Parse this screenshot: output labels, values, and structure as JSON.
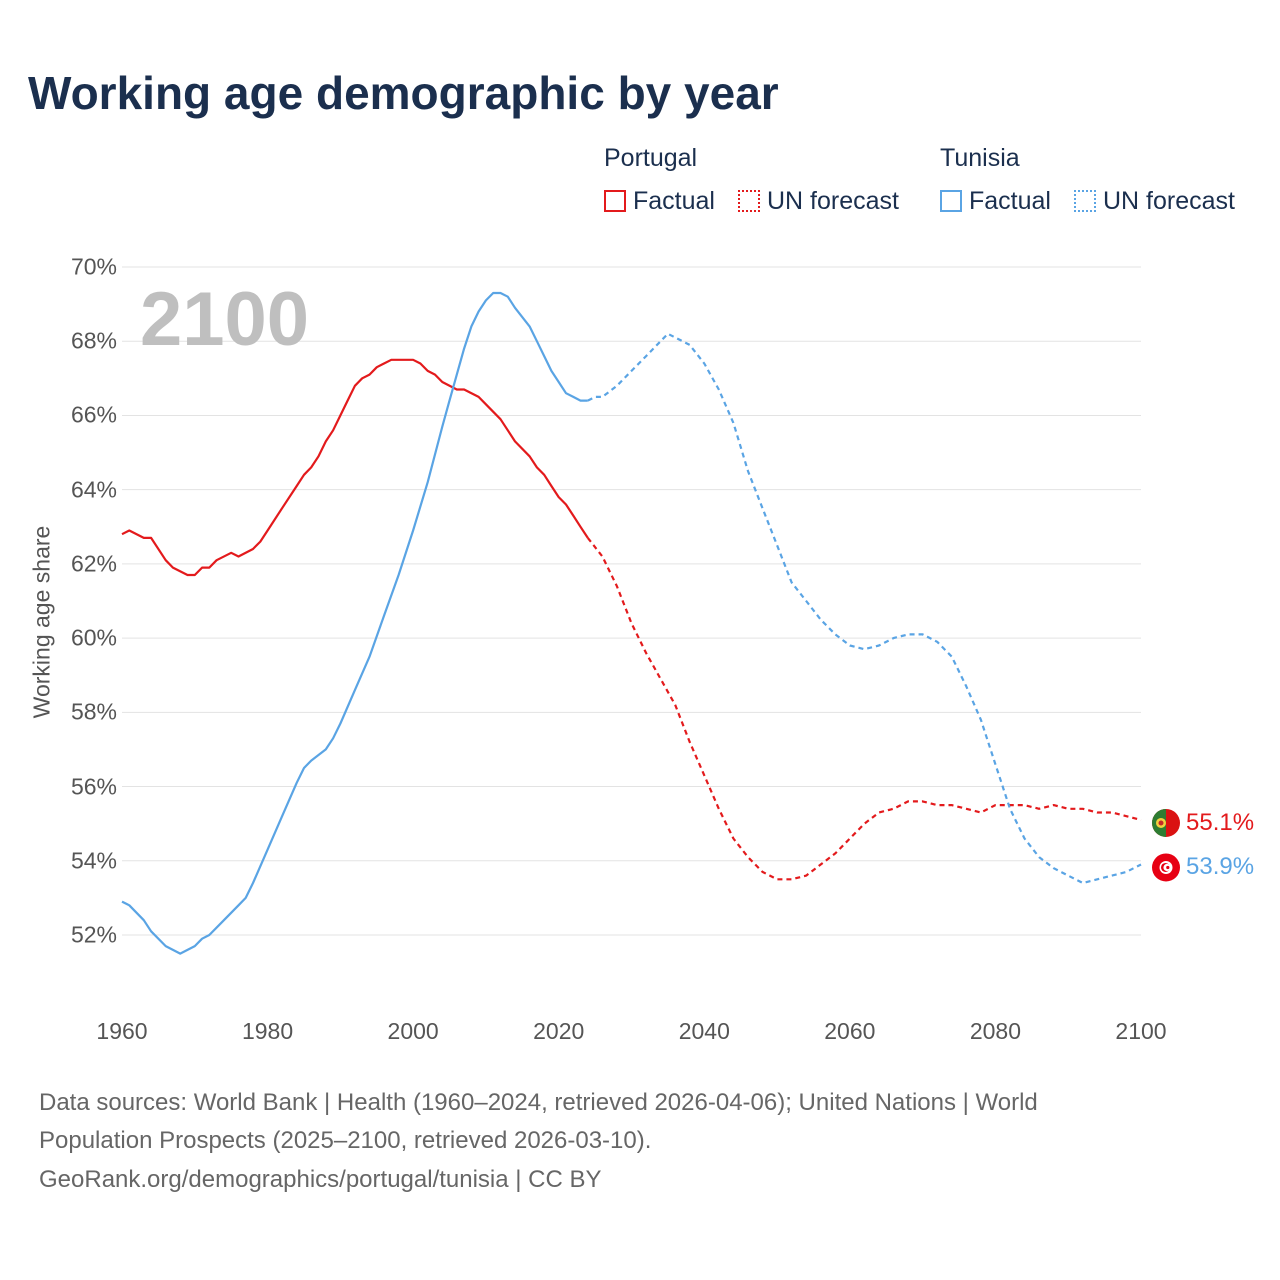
{
  "title": "Working age demographic by year",
  "year_label": "2100",
  "legend": {
    "groups": [
      {
        "name": "Portugal",
        "factual_label": "Factual",
        "forecast_label": "UN forecast",
        "color": "#e31a1c"
      },
      {
        "name": "Tunisia",
        "factual_label": "Factual",
        "forecast_label": "UN forecast",
        "color": "#5aa4e4"
      }
    ]
  },
  "end_labels": {
    "portugal": "55.1%",
    "tunisia": "53.9%"
  },
  "footer": {
    "line1": "Data sources: World Bank | Health (1960–2024, retrieved 2026-04-06); United Nations | World",
    "line2": "Population Prospects (2025–2100, retrieved 2026-03-10).",
    "line3": "GeoRank.org/demographics/portugal/tunisia | CC BY"
  },
  "chart_data": {
    "type": "line",
    "title": "Working age demographic by year",
    "xlabel": "",
    "ylabel": "Working age share",
    "xlim": [
      1960,
      2100
    ],
    "ylim": [
      50.5,
      70.5
    ],
    "xticks": [
      1960,
      1980,
      2000,
      2020,
      2040,
      2060,
      2080,
      2100
    ],
    "xtick_labels": [
      "1960",
      "1980",
      "2000",
      "2020",
      "2040",
      "2060",
      "2080",
      "2100"
    ],
    "yticks": [
      52,
      54,
      56,
      58,
      60,
      62,
      64,
      66,
      68,
      70
    ],
    "ytick_labels": [
      "52%",
      "54%",
      "56%",
      "58%",
      "60%",
      "62%",
      "64%",
      "66%",
      "68%",
      "70%"
    ],
    "grid": true,
    "factual_end_year": 2024,
    "series": [
      {
        "name": "Portugal",
        "color": "#e31a1c",
        "points": [
          [
            1960,
            62.8
          ],
          [
            1961,
            62.9
          ],
          [
            1963,
            62.7
          ],
          [
            1964,
            62.7
          ],
          [
            1966,
            62.1
          ],
          [
            1967,
            61.9
          ],
          [
            1969,
            61.7
          ],
          [
            1970,
            61.7
          ],
          [
            1971,
            61.9
          ],
          [
            1972,
            61.9
          ],
          [
            1973,
            62.1
          ],
          [
            1975,
            62.3
          ],
          [
            1976,
            62.2
          ],
          [
            1978,
            62.4
          ],
          [
            1979,
            62.6
          ],
          [
            1980,
            62.9
          ],
          [
            1982,
            63.5
          ],
          [
            1984,
            64.1
          ],
          [
            1985,
            64.4
          ],
          [
            1986,
            64.6
          ],
          [
            1987,
            64.9
          ],
          [
            1988,
            65.3
          ],
          [
            1989,
            65.6
          ],
          [
            1990,
            66.0
          ],
          [
            1991,
            66.4
          ],
          [
            1992,
            66.8
          ],
          [
            1993,
            67.0
          ],
          [
            1994,
            67.1
          ],
          [
            1995,
            67.3
          ],
          [
            1996,
            67.4
          ],
          [
            1997,
            67.5
          ],
          [
            2000,
            67.5
          ],
          [
            2001,
            67.4
          ],
          [
            2002,
            67.2
          ],
          [
            2003,
            67.1
          ],
          [
            2004,
            66.9
          ],
          [
            2006,
            66.7
          ],
          [
            2007,
            66.7
          ],
          [
            2009,
            66.5
          ],
          [
            2010,
            66.3
          ],
          [
            2012,
            65.9
          ],
          [
            2013,
            65.6
          ],
          [
            2014,
            65.3
          ],
          [
            2016,
            64.9
          ],
          [
            2017,
            64.6
          ],
          [
            2018,
            64.4
          ],
          [
            2019,
            64.1
          ],
          [
            2020,
            63.8
          ],
          [
            2021,
            63.6
          ],
          [
            2022,
            63.3
          ],
          [
            2023,
            63.0
          ],
          [
            2024,
            62.7
          ],
          [
            2026,
            62.2
          ],
          [
            2028,
            61.4
          ],
          [
            2030,
            60.4
          ],
          [
            2032,
            59.6
          ],
          [
            2034,
            58.9
          ],
          [
            2036,
            58.2
          ],
          [
            2038,
            57.2
          ],
          [
            2040,
            56.3
          ],
          [
            2042,
            55.4
          ],
          [
            2044,
            54.6
          ],
          [
            2046,
            54.1
          ],
          [
            2048,
            53.7
          ],
          [
            2050,
            53.5
          ],
          [
            2052,
            53.5
          ],
          [
            2054,
            53.6
          ],
          [
            2056,
            53.9
          ],
          [
            2058,
            54.2
          ],
          [
            2060,
            54.6
          ],
          [
            2062,
            55.0
          ],
          [
            2064,
            55.3
          ],
          [
            2066,
            55.4
          ],
          [
            2068,
            55.6
          ],
          [
            2070,
            55.6
          ],
          [
            2072,
            55.5
          ],
          [
            2074,
            55.5
          ],
          [
            2076,
            55.4
          ],
          [
            2078,
            55.3
          ],
          [
            2080,
            55.5
          ],
          [
            2082,
            55.5
          ],
          [
            2084,
            55.5
          ],
          [
            2086,
            55.4
          ],
          [
            2088,
            55.5
          ],
          [
            2090,
            55.4
          ],
          [
            2092,
            55.4
          ],
          [
            2094,
            55.3
          ],
          [
            2096,
            55.3
          ],
          [
            2098,
            55.2
          ],
          [
            2100,
            55.1
          ]
        ]
      },
      {
        "name": "Tunisia",
        "color": "#5aa4e4",
        "points": [
          [
            1960,
            52.9
          ],
          [
            1961,
            52.8
          ],
          [
            1963,
            52.4
          ],
          [
            1964,
            52.1
          ],
          [
            1966,
            51.7
          ],
          [
            1968,
            51.5
          ],
          [
            1970,
            51.7
          ],
          [
            1971,
            51.9
          ],
          [
            1972,
            52.0
          ],
          [
            1974,
            52.4
          ],
          [
            1976,
            52.8
          ],
          [
            1977,
            53.0
          ],
          [
            1978,
            53.4
          ],
          [
            1980,
            54.3
          ],
          [
            1982,
            55.2
          ],
          [
            1984,
            56.1
          ],
          [
            1985,
            56.5
          ],
          [
            1986,
            56.7
          ],
          [
            1988,
            57.0
          ],
          [
            1989,
            57.3
          ],
          [
            1990,
            57.7
          ],
          [
            1992,
            58.6
          ],
          [
            1994,
            59.5
          ],
          [
            1996,
            60.6
          ],
          [
            1998,
            61.7
          ],
          [
            2000,
            62.9
          ],
          [
            2002,
            64.2
          ],
          [
            2004,
            65.7
          ],
          [
            2005,
            66.4
          ],
          [
            2006,
            67.1
          ],
          [
            2007,
            67.8
          ],
          [
            2008,
            68.4
          ],
          [
            2009,
            68.8
          ],
          [
            2010,
            69.1
          ],
          [
            2011,
            69.3
          ],
          [
            2012,
            69.3
          ],
          [
            2013,
            69.2
          ],
          [
            2014,
            68.9
          ],
          [
            2016,
            68.4
          ],
          [
            2017,
            68.0
          ],
          [
            2018,
            67.6
          ],
          [
            2019,
            67.2
          ],
          [
            2020,
            66.9
          ],
          [
            2021,
            66.6
          ],
          [
            2022,
            66.5
          ],
          [
            2023,
            66.4
          ],
          [
            2024,
            66.4
          ],
          [
            2025,
            66.5
          ],
          [
            2026,
            66.5
          ],
          [
            2028,
            66.8
          ],
          [
            2030,
            67.2
          ],
          [
            2032,
            67.6
          ],
          [
            2034,
            68.0
          ],
          [
            2035,
            68.2
          ],
          [
            2036,
            68.1
          ],
          [
            2038,
            67.9
          ],
          [
            2040,
            67.4
          ],
          [
            2042,
            66.7
          ],
          [
            2044,
            65.8
          ],
          [
            2046,
            64.5
          ],
          [
            2048,
            63.5
          ],
          [
            2050,
            62.5
          ],
          [
            2052,
            61.5
          ],
          [
            2054,
            61.0
          ],
          [
            2056,
            60.5
          ],
          [
            2058,
            60.1
          ],
          [
            2060,
            59.8
          ],
          [
            2062,
            59.7
          ],
          [
            2064,
            59.8
          ],
          [
            2066,
            60.0
          ],
          [
            2068,
            60.1
          ],
          [
            2070,
            60.1
          ],
          [
            2072,
            59.9
          ],
          [
            2074,
            59.5
          ],
          [
            2076,
            58.7
          ],
          [
            2078,
            57.8
          ],
          [
            2080,
            56.6
          ],
          [
            2082,
            55.4
          ],
          [
            2084,
            54.6
          ],
          [
            2086,
            54.1
          ],
          [
            2088,
            53.8
          ],
          [
            2090,
            53.6
          ],
          [
            2092,
            53.4
          ],
          [
            2094,
            53.5
          ],
          [
            2096,
            53.6
          ],
          [
            2098,
            53.7
          ],
          [
            2100,
            53.9
          ]
        ]
      }
    ]
  }
}
